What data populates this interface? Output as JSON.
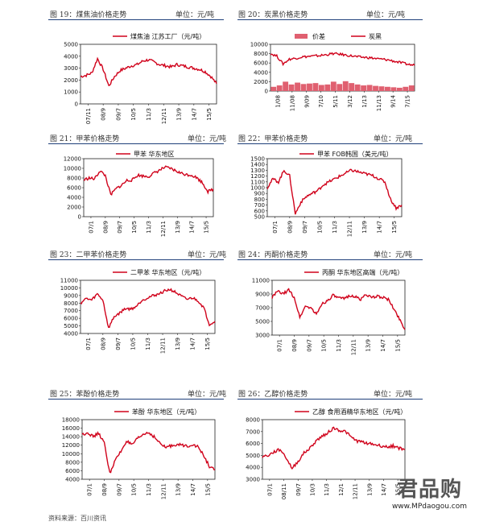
{
  "source": "资料来源：百川资讯",
  "watermark": {
    "text": "君品购",
    "url": "www.MPdaogou.com"
  },
  "figures": [
    {
      "caption": "图 19：煤焦油价格走势",
      "unit": "单位：元/吨"
    },
    {
      "caption": "图 20：炭黑价格走势",
      "unit": "单位：元/吨"
    },
    {
      "caption": "图 21：甲苯价格走势",
      "unit": "单位：元/吨"
    },
    {
      "caption": "图 22：甲苯价格走势",
      "unit": "单位：元/吨"
    },
    {
      "caption": "图 23：二甲苯价格走势",
      "unit": "单位：元/吨"
    },
    {
      "caption": "图 24：丙酮价格走势",
      "unit": "单位：元/吨"
    },
    {
      "caption": "图 25：苯酚价格走势",
      "unit": "单位：元/吨"
    },
    {
      "caption": "图 26：乙醇价格走势",
      "unit": "单位：元/吨"
    }
  ],
  "chart_data": [
    {
      "type": "line",
      "legend": [
        "煤焦油 江苏工厂（元/吨）"
      ],
      "ylim": [
        0,
        5000
      ],
      "yticks": [
        "0",
        "1000",
        "2000",
        "3000",
        "4000",
        "5000"
      ],
      "xticks": [
        "07/11",
        "08/9",
        "09/7",
        "10/5",
        "11/3",
        "12/11",
        "13/9",
        "14/7",
        "15/5"
      ],
      "series": [
        {
          "name": "煤焦油 江苏工厂（元/吨）",
          "color": "#d0021b",
          "values": [
            2300,
            2400,
            2600,
            3800,
            2900,
            1500,
            2300,
            2800,
            3000,
            3200,
            3300,
            3600,
            3700,
            3500,
            3300,
            3200,
            3100,
            3300,
            3200,
            3100,
            3000,
            2900,
            2700,
            2300,
            1700
          ]
        }
      ]
    },
    {
      "type": "bar+line",
      "legend": [
        "价差",
        "炭黑"
      ],
      "ylim": [
        0,
        10000
      ],
      "yticks": [
        "0",
        "2000",
        "4000",
        "6000",
        "8000",
        "10000"
      ],
      "xticks": [
        "1/08",
        "11/08",
        "9/09",
        "7/10",
        "5/11",
        "3/12",
        "1/13",
        "11/13",
        "9/14",
        "7/15"
      ],
      "bars": {
        "name": "价差",
        "color": "#e06070",
        "values": [
          900,
          1200,
          2000,
          1400,
          1800,
          1500,
          1600,
          1700,
          1300,
          1400,
          2000,
          1500,
          2100,
          1700,
          1400,
          1200,
          1300,
          1100,
          1000,
          900,
          800,
          700,
          900,
          1200
        ]
      },
      "series": [
        {
          "name": "炭黑",
          "color": "#d0021b",
          "values": [
            8000,
            7500,
            5800,
            6800,
            7000,
            7300,
            7400,
            7500,
            7600,
            7800,
            8000,
            7900,
            7700,
            7500,
            7300,
            7200,
            7100,
            6900,
            6800,
            6600,
            6300,
            6000,
            5700,
            5500
          ]
        }
      ]
    },
    {
      "type": "line",
      "legend": [
        "甲苯 华东地区"
      ],
      "ylim": [
        0,
        12000
      ],
      "yticks": [
        "0",
        "2000",
        "4000",
        "6000",
        "8000",
        "10000",
        "12000"
      ],
      "xticks": [
        "07/1",
        "08/9",
        "09/7",
        "10/5",
        "11/3",
        "12/11",
        "13/9",
        "14/7",
        "15/5"
      ],
      "series": [
        {
          "name": "甲苯 华东地区",
          "color": "#d0021b",
          "values": [
            7600,
            8000,
            7800,
            9500,
            8500,
            4500,
            5800,
            6500,
            7500,
            7600,
            8600,
            8400,
            8300,
            9000,
            9600,
            10200,
            10000,
            9500,
            9000,
            8700,
            8600,
            8000,
            7000,
            5200,
            5700
          ]
        }
      ]
    },
    {
      "type": "line",
      "legend": [
        "甲苯 FOB韩国（美元/吨）"
      ],
      "ylim": [
        500,
        1500
      ],
      "yticks": [
        "500",
        "600",
        "700",
        "800",
        "900",
        "1000",
        "1100",
        "1200",
        "1300",
        "1400",
        "1500"
      ],
      "xticks": [
        "07/1",
        "08/9",
        "09/7",
        "10/5",
        "11/3",
        "12/11",
        "13/9",
        "14/7",
        "15/5"
      ],
      "series": [
        {
          "name": "甲苯 FOB韩国（美元/吨）",
          "color": "#d0021b",
          "values": [
            1000,
            1150,
            1100,
            1300,
            1200,
            550,
            750,
            850,
            900,
            950,
            1050,
            1100,
            1150,
            1200,
            1250,
            1300,
            1280,
            1250,
            1230,
            1200,
            1150,
            1100,
            800,
            650,
            700
          ]
        }
      ]
    },
    {
      "type": "line",
      "legend": [
        "二甲苯 华东地区（元/吨）"
      ],
      "ylim": [
        4000,
        11000
      ],
      "yticks": [
        "4000",
        "5000",
        "6000",
        "7000",
        "8000",
        "9000",
        "10000",
        "11000"
      ],
      "xticks": [
        "07/1",
        "08/9",
        "09/7",
        "10/5",
        "11/3",
        "12/11",
        "13/9",
        "14/7",
        "15/5"
      ],
      "series": [
        {
          "name": "二甲苯 华东地区（元/吨）",
          "color": "#d0021b",
          "values": [
            8000,
            8600,
            8400,
            9200,
            8400,
            4700,
            6200,
            6700,
            7300,
            7200,
            7600,
            8400,
            8700,
            9000,
            9200,
            9600,
            9800,
            9400,
            8900,
            8500,
            8700,
            8300,
            7400,
            5200,
            5600
          ]
        }
      ]
    },
    {
      "type": "line",
      "legend": [
        "丙酮 华东地区高端（元/吨）"
      ],
      "ylim": [
        3000,
        11000
      ],
      "yticks": [
        "3000",
        "5000",
        "7000",
        "9000",
        "11000"
      ],
      "xticks": [
        "07/1",
        "08/9",
        "09/7",
        "10/5",
        "11/3",
        "12/11",
        "13/9",
        "14/7",
        "15/5"
      ],
      "series": [
        {
          "name": "丙酮 华东地区高端（元/吨）",
          "color": "#d0021b",
          "values": [
            8500,
            9400,
            9000,
            9600,
            8500,
            5600,
            7200,
            7000,
            6000,
            7600,
            8000,
            8800,
            8400,
            8300,
            8800,
            8600,
            8200,
            9000,
            8400,
            8700,
            8500,
            8200,
            6800,
            5400,
            3800
          ]
        }
      ]
    },
    {
      "type": "line",
      "legend": [
        "苯酚 华东地区（元/吨）"
      ],
      "ylim": [
        4000,
        18000
      ],
      "yticks": [
        "4000",
        "6000",
        "8000",
        "10000",
        "12000",
        "14000",
        "16000",
        "18000"
      ],
      "xticks": [
        "07/1",
        "08/9",
        "09/7",
        "10/5",
        "11/3",
        "12/11",
        "13/9",
        "14/7",
        "15/5"
      ],
      "series": [
        {
          "name": "苯酚 华东地区（元/吨）",
          "color": "#d0021b",
          "values": [
            14500,
            15000,
            14000,
            14800,
            12500,
            5400,
            8500,
            10500,
            13000,
            12000,
            13500,
            14500,
            15000,
            14000,
            12500,
            11500,
            11800,
            12200,
            12000,
            11800,
            12200,
            11500,
            9500,
            7000,
            6200
          ]
        }
      ]
    },
    {
      "type": "line",
      "legend": [
        "乙醇 食用酒精华东地区（元/吨）"
      ],
      "ylim": [
        3000,
        8000
      ],
      "yticks": [
        "3000",
        "4000",
        "5000",
        "6000",
        "7000",
        "8000"
      ],
      "xticks": [
        "07/1",
        "08/11",
        "09/7",
        "10/3",
        "11/3",
        "12/1",
        "12/11",
        "13/9",
        "14/7",
        "15/5"
      ],
      "series": [
        {
          "name": "乙醇 食用酒精华东地区（元/吨）",
          "color": "#d0021b",
          "values": [
            4900,
            5000,
            5300,
            5500,
            4800,
            3900,
            4500,
            5200,
            5600,
            6200,
            6600,
            6900,
            7300,
            7100,
            7000,
            6500,
            6200,
            6100,
            6000,
            5900,
            5800,
            5700,
            5800,
            5600,
            5500
          ]
        }
      ]
    }
  ]
}
